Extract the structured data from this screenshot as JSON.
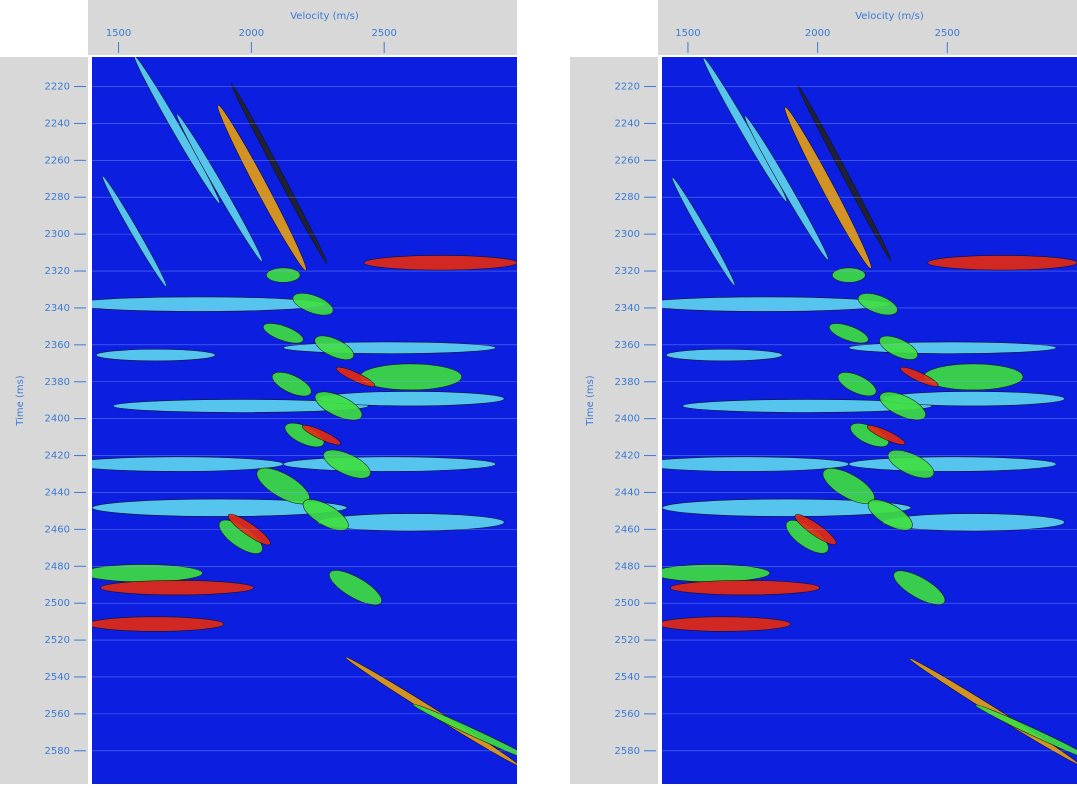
{
  "chart_data": [
    {
      "type": "semblance",
      "x_label": "Velocity (m/s)",
      "y_label": "Time (ms)",
      "xlim": [
        1400,
        3000
      ],
      "xticks": [
        1500,
        2000,
        2500
      ],
      "ylim": [
        2204,
        2598
      ],
      "yticks": [
        2220,
        2240,
        2260,
        2280,
        2300,
        2320,
        2340,
        2360,
        2380,
        2400,
        2420,
        2440,
        2460,
        2480,
        2500,
        2520,
        2540,
        2560,
        2580
      ],
      "grid": true,
      "color": "#0c1fe0"
    },
    {
      "type": "semblance",
      "x_label": "Velocity (m/s)",
      "y_label": "Time (ms)",
      "xlim": [
        1400,
        3000
      ],
      "xticks": [
        1500,
        2000,
        2500
      ],
      "ylim": [
        2204,
        2598
      ],
      "yticks": [
        2220,
        2240,
        2260,
        2280,
        2300,
        2320,
        2340,
        2360,
        2380,
        2400,
        2420,
        2440,
        2460,
        2480,
        2500,
        2520,
        2540,
        2560,
        2580
      ],
      "grid": true,
      "color": "#0c1fe0"
    }
  ]
}
